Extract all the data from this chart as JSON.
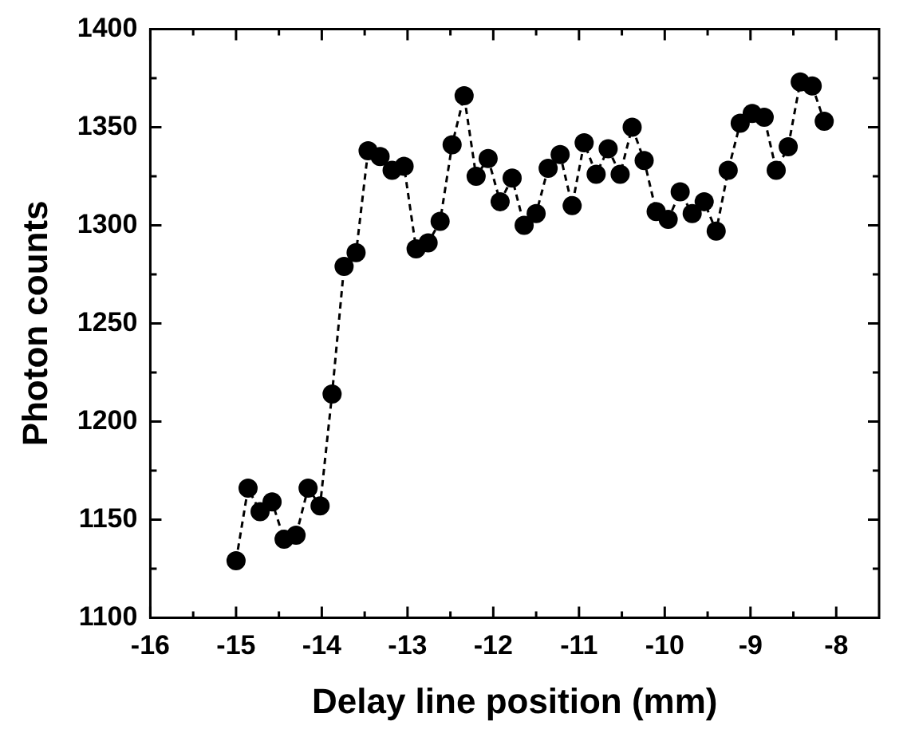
{
  "chart_data": {
    "type": "line",
    "xlabel": "Delay line position (mm)",
    "ylabel": "Photon counts",
    "marker": "circle",
    "line_style": "dashed",
    "grid": false,
    "legend": false,
    "xlim": [
      -16,
      -7.5
    ],
    "ylim": [
      1100,
      1400
    ],
    "xticks": [
      -16,
      {
        "value": -15.5,
        "label": null
      },
      -15,
      {
        "value": -14.5,
        "label": null
      },
      -14,
      {
        "value": -13.5,
        "label": null
      },
      -13,
      {
        "value": -12.5,
        "label": null
      },
      -12,
      {
        "value": -11.5,
        "label": null
      },
      -11,
      {
        "value": -10.5,
        "label": null
      },
      -10,
      {
        "value": -9.5,
        "label": null
      },
      -9,
      {
        "value": -8.5,
        "label": null
      },
      -8
    ],
    "yticks": [
      1100,
      {
        "value": 1125,
        "label": null
      },
      1150,
      {
        "value": 1175,
        "label": null
      },
      1200,
      {
        "value": 1225,
        "label": null
      },
      1250,
      {
        "value": 1275,
        "label": null
      },
      1300,
      {
        "value": 1325,
        "label": null
      },
      1350,
      {
        "value": 1375,
        "label": null
      },
      1400
    ],
    "series": [
      {
        "color": "#000000",
        "x": [
          -15.0,
          -14.86,
          -14.72,
          -14.58,
          -14.44,
          -14.3,
          -14.16,
          -14.02,
          -13.88,
          -13.74,
          -13.6,
          -13.46,
          -13.32,
          -13.18,
          -13.04,
          -12.9,
          -12.76,
          -12.62,
          -12.48,
          -12.34,
          -12.2,
          -12.06,
          -11.92,
          -11.78,
          -11.64,
          -11.5,
          -11.36,
          -11.22,
          -11.08,
          -10.94,
          -10.8,
          -10.66,
          -10.52,
          -10.38,
          -10.24,
          -10.1,
          -9.96,
          -9.82,
          -9.68,
          -9.54,
          -9.4,
          -9.26,
          -9.12,
          -8.98,
          -8.84,
          -8.7,
          -8.56,
          -8.42,
          -8.28,
          -8.14
        ],
        "values": [
          1129,
          1166,
          1154,
          1159,
          1140,
          1142,
          1166,
          1157,
          1214,
          1279,
          1286,
          1338,
          1335,
          1328,
          1330,
          1288,
          1291,
          1302,
          1341,
          1366,
          1325,
          1334,
          1312,
          1324,
          1300,
          1306,
          1329,
          1336,
          1310,
          1342,
          1326,
          1339,
          1326,
          1350,
          1333,
          1307,
          1303,
          1317,
          1306,
          1312,
          1297,
          1328,
          1352,
          1357,
          1355,
          1328,
          1340,
          1373,
          1371,
          1353
        ]
      }
    ]
  }
}
